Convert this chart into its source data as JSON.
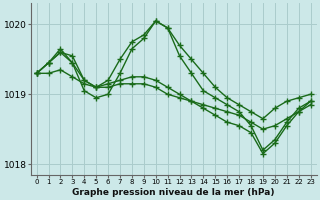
{
  "title": "Graphe pression niveau de la mer (hPa)",
  "bg_color": "#cce8e8",
  "grid_color": "#aacccc",
  "line_color": "#1a6b1a",
  "series": [
    {
      "x": [
        0,
        1,
        2,
        3,
        4,
        5,
        6,
        7,
        8,
        9,
        10,
        11,
        12,
        13,
        14,
        15,
        16,
        17,
        18,
        19,
        20,
        21,
        22,
        23
      ],
      "y": [
        1019.3,
        1019.45,
        1019.6,
        1019.45,
        1019.05,
        1018.95,
        1019.0,
        1019.3,
        1019.65,
        1019.8,
        1020.05,
        1019.95,
        1019.55,
        1019.3,
        1019.05,
        1018.95,
        1018.85,
        1018.75,
        1018.55,
        1018.2,
        1018.35,
        1018.6,
        1018.8,
        1018.9
      ]
    },
    {
      "x": [
        0,
        1,
        2,
        3,
        4,
        5,
        6,
        7,
        8,
        9,
        10,
        11,
        12,
        13,
        14,
        15,
        16,
        17,
        18,
        19,
        20,
        21,
        22,
        23
      ],
      "y": [
        1019.3,
        1019.45,
        1019.6,
        1019.55,
        1019.2,
        1019.1,
        1019.2,
        1019.5,
        1019.75,
        1019.85,
        1020.05,
        1019.95,
        1019.7,
        1019.5,
        1019.3,
        1019.1,
        1018.95,
        1018.85,
        1018.75,
        1018.65,
        1018.8,
        1018.9,
        1018.95,
        1019.0
      ]
    },
    {
      "x": [
        0,
        1,
        2,
        3,
        4,
        5,
        6,
        7,
        8,
        9,
        10,
        11,
        12,
        13,
        14,
        15,
        16,
        17,
        18,
        19,
        20,
        21,
        22,
        23
      ],
      "y": [
        1019.3,
        1019.3,
        1019.35,
        1019.25,
        1019.15,
        1019.1,
        1019.1,
        1019.15,
        1019.15,
        1019.15,
        1019.1,
        1019.0,
        1018.95,
        1018.9,
        1018.85,
        1018.8,
        1018.75,
        1018.7,
        1018.6,
        1018.5,
        1018.55,
        1018.65,
        1018.75,
        1018.85
      ]
    },
    {
      "x": [
        0,
        1,
        2,
        3,
        4,
        5,
        6,
        7,
        8,
        9,
        10,
        11,
        12,
        13,
        14,
        15,
        16,
        17,
        18,
        19,
        20,
        21,
        22,
        23
      ],
      "y": [
        1019.3,
        1019.45,
        1019.65,
        1019.45,
        1019.2,
        1019.1,
        1019.15,
        1019.2,
        1019.25,
        1019.25,
        1019.2,
        1019.1,
        1019.0,
        1018.9,
        1018.8,
        1018.7,
        1018.6,
        1018.55,
        1018.45,
        1018.15,
        1018.3,
        1018.55,
        1018.75,
        1018.9
      ]
    }
  ],
  "ylim": [
    1017.85,
    1020.3
  ],
  "yticks": [
    1018,
    1019,
    1020
  ],
  "xlim": [
    -0.5,
    23.5
  ],
  "xticks": [
    0,
    1,
    2,
    3,
    4,
    5,
    6,
    7,
    8,
    9,
    10,
    11,
    12,
    13,
    14,
    15,
    16,
    17,
    18,
    19,
    20,
    21,
    22,
    23
  ],
  "marker": "+",
  "marker_size": 5.0,
  "line_width": 1.0
}
